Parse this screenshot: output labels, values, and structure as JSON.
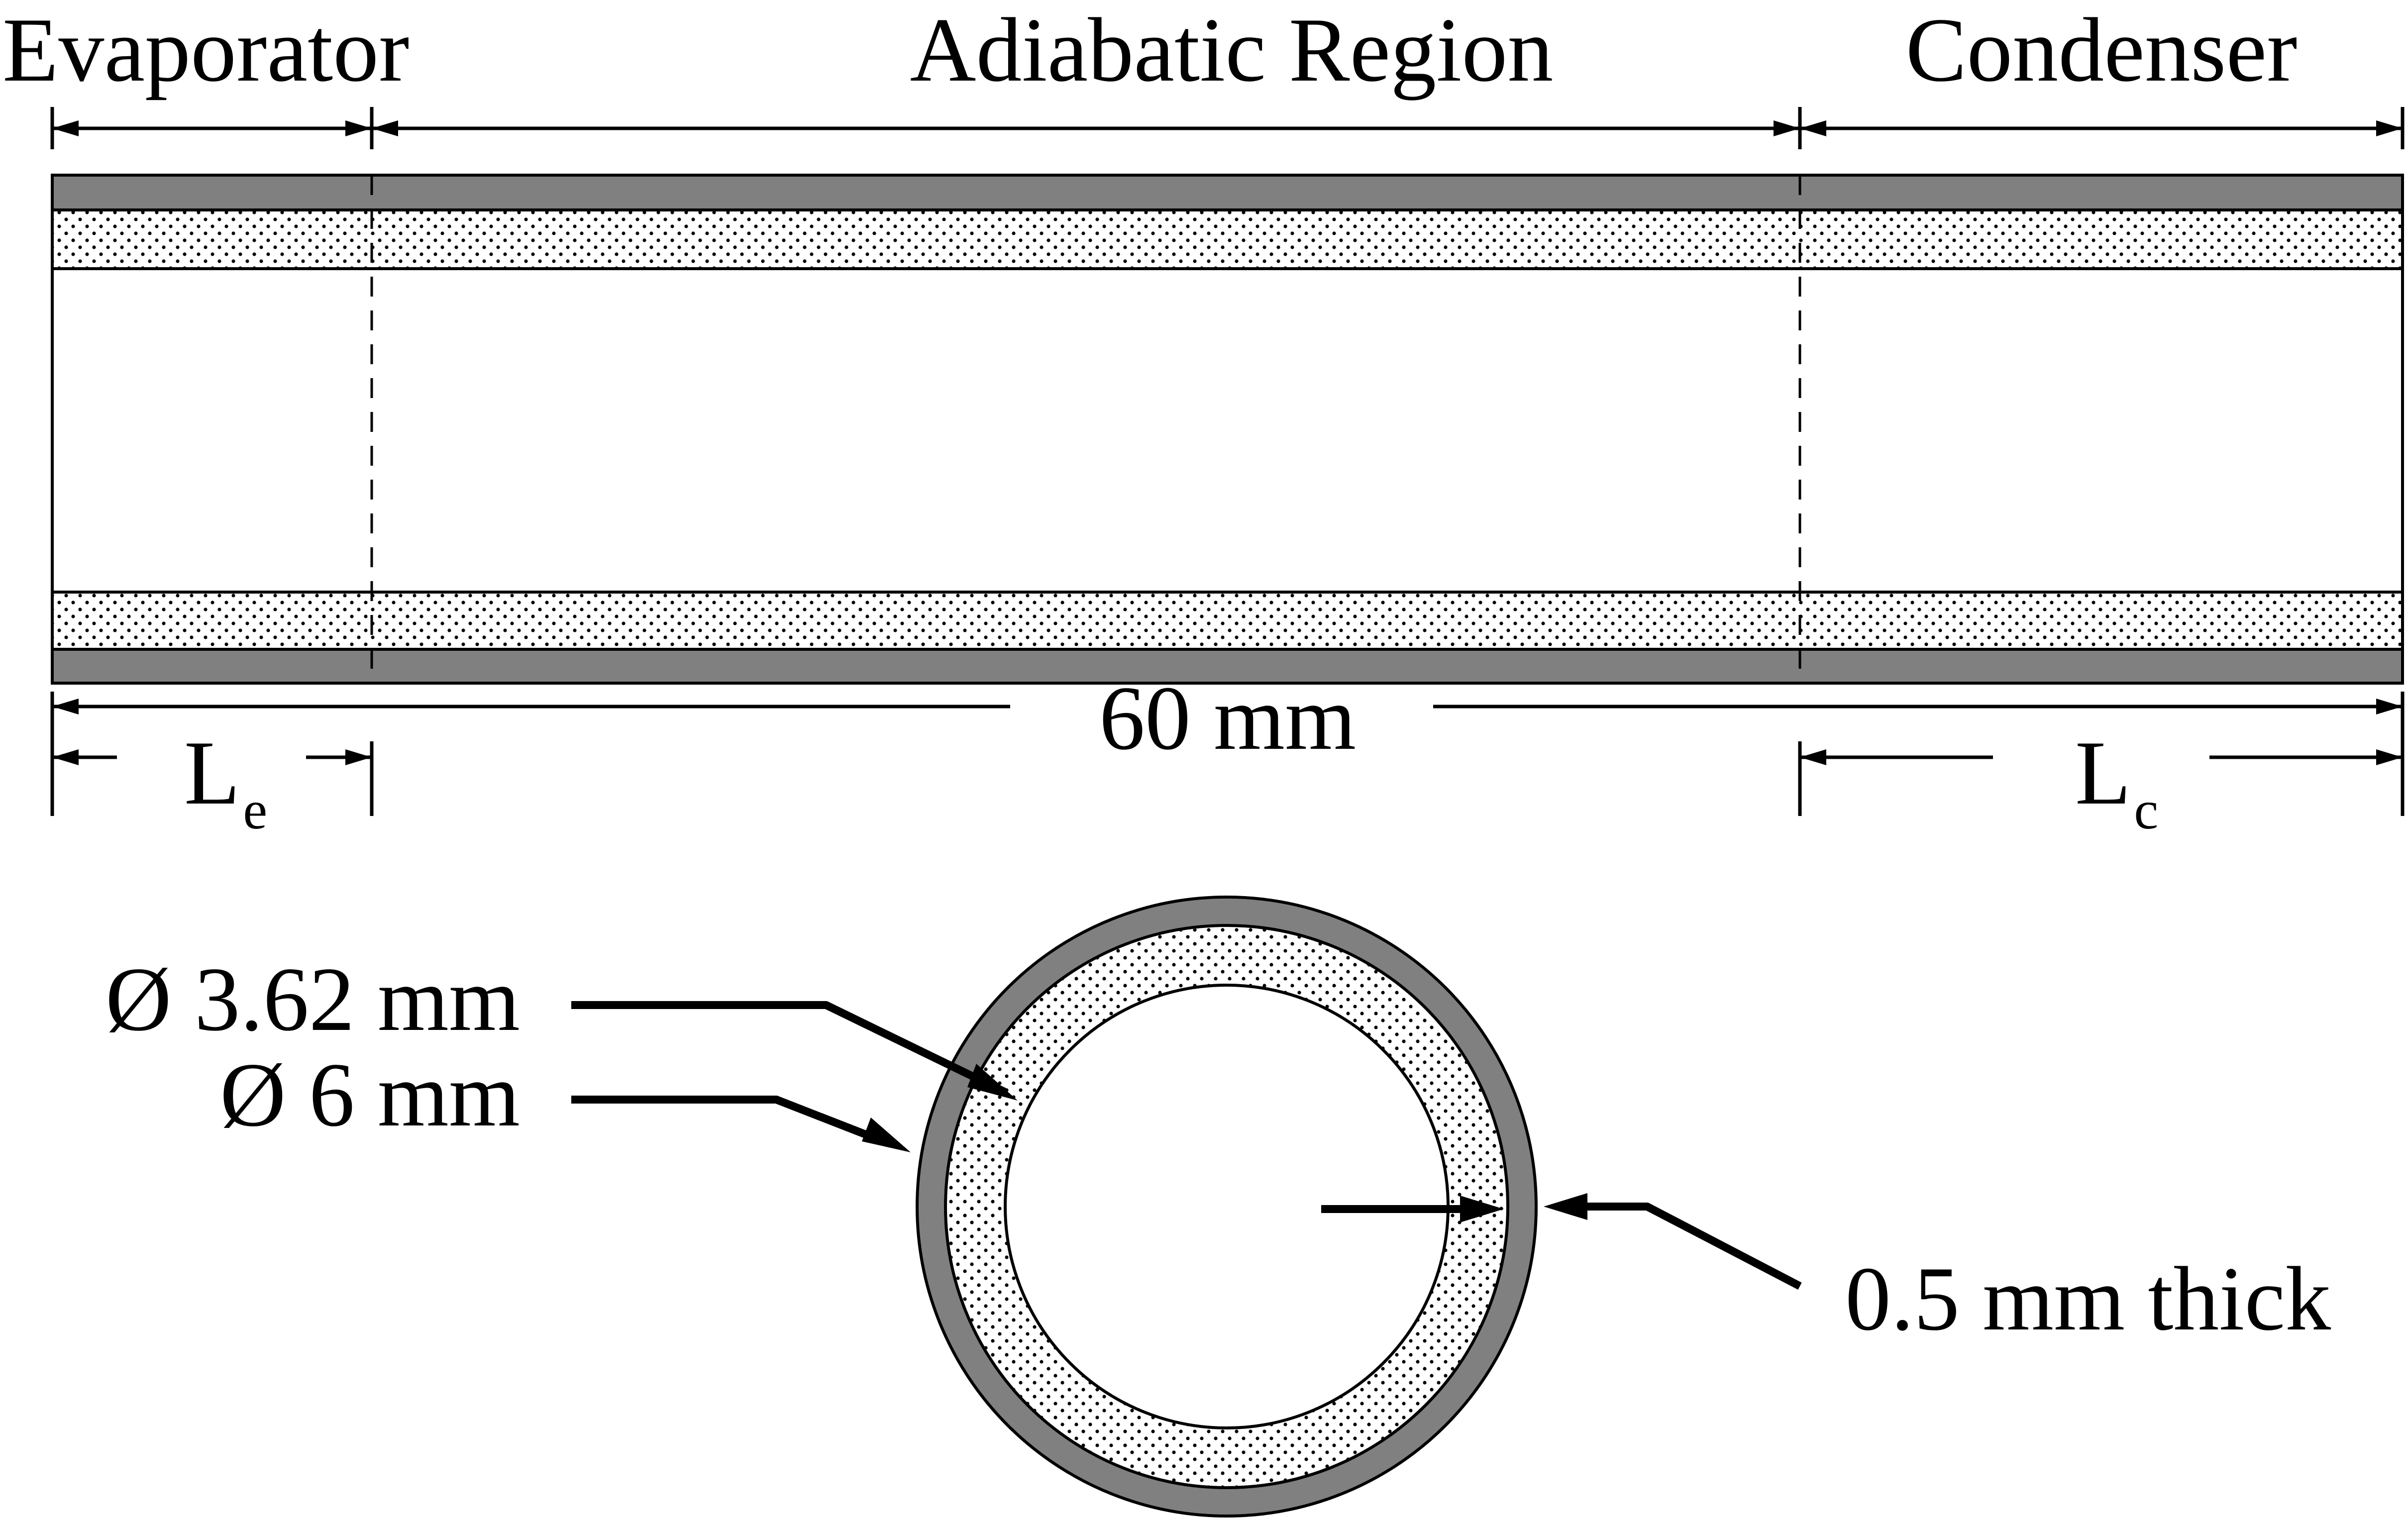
{
  "sections": {
    "evaporator": "Evaporator",
    "adiabatic": "Adiabatic Region",
    "condenser": "Condenser"
  },
  "dimensions": {
    "total_length": "60 mm",
    "evaporator_length": {
      "main": "L",
      "sub": "e"
    },
    "condenser_length": {
      "main": "L",
      "sub": "c"
    },
    "inner_diameter": "Ø 3.62 mm",
    "outer_diameter": "Ø 6 mm",
    "thickness": "0.5 mm thick"
  },
  "colors": {
    "wall": "#808080",
    "wick_background": "#ffffff",
    "wick_dots": "#000000",
    "line": "#000000"
  }
}
